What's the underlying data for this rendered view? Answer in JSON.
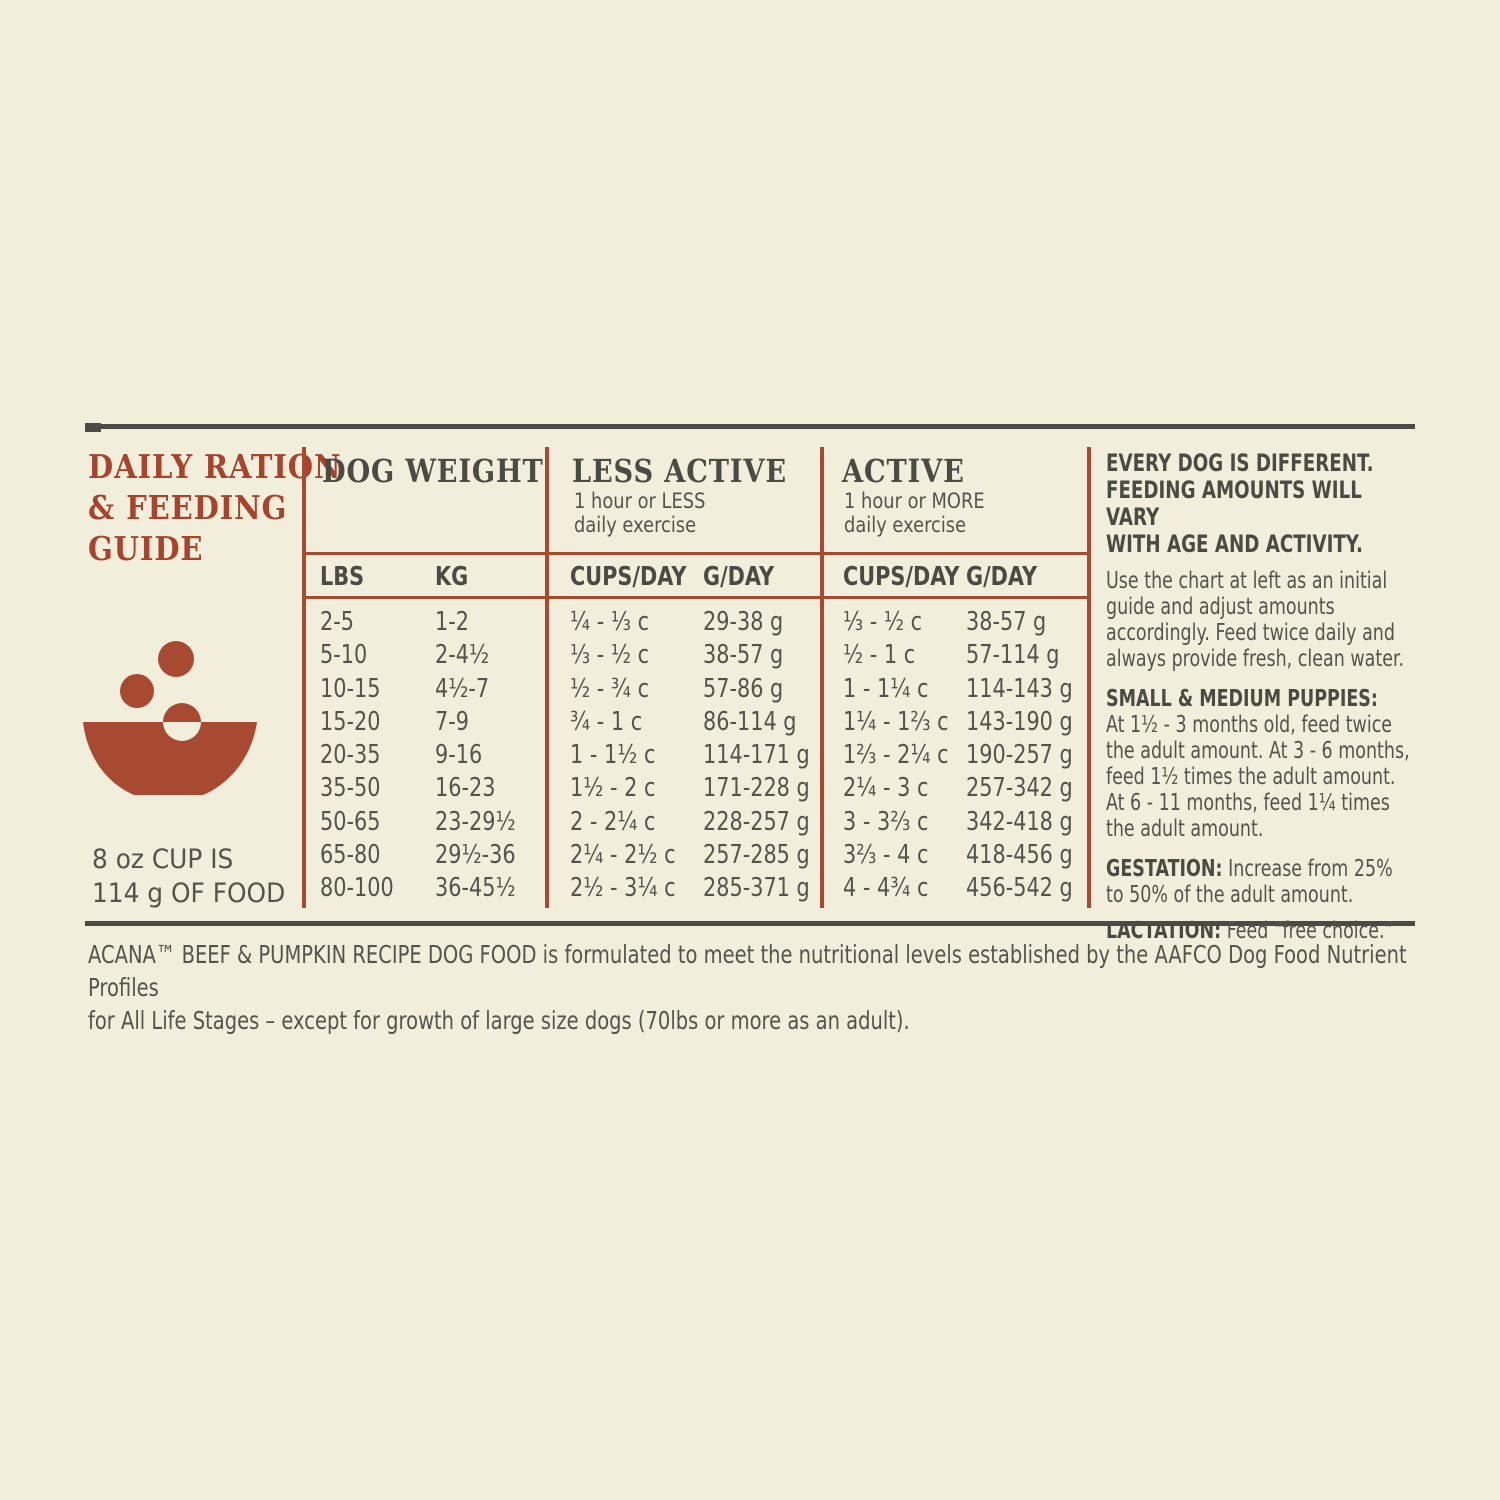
{
  "page": {
    "background": "#f2eedc",
    "accent_red": "#a84a32",
    "title_red": "#a8432c",
    "dark_text": "#4b4a43",
    "body_text": "#55544c"
  },
  "guide": {
    "title": "DAILY RATION\n& FEEDING\nGUIDE",
    "cup_note": "8 oz CUP IS\n114 g OF FOOD",
    "icon": "food-bowl-icon"
  },
  "table": {
    "groups": {
      "dog_weight": {
        "label": "DOG WEIGHT",
        "sub": ""
      },
      "less_active": {
        "label": "LESS ACTIVE",
        "sub": "1 hour or LESS\ndaily exercise"
      },
      "active": {
        "label": "ACTIVE",
        "sub": "1 hour or MORE\ndaily exercise"
      }
    },
    "sub_headers": {
      "lbs": "LBS",
      "kg": "KG",
      "la_cups": "CUPS/DAY",
      "la_g": "G/DAY",
      "a_cups": "CUPS/DAY",
      "a_g": "G/DAY"
    },
    "rows": [
      {
        "lbs": "2-5",
        "kg": "1-2",
        "la_cups": "¼ - ⅓ c",
        "la_g": "29-38 g",
        "a_cups": "⅓ - ½ c",
        "a_g": "38-57 g"
      },
      {
        "lbs": "5-10",
        "kg": "2-4½",
        "la_cups": "⅓ - ½ c",
        "la_g": "38-57 g",
        "a_cups": "½ - 1 c",
        "a_g": "57-114 g"
      },
      {
        "lbs": "10-15",
        "kg": "4½-7",
        "la_cups": "½ - ¾ c",
        "la_g": "57-86 g",
        "a_cups": "1 - 1¼ c",
        "a_g": "114-143 g"
      },
      {
        "lbs": "15-20",
        "kg": "7-9",
        "la_cups": "¾ - 1 c",
        "la_g": "86-114 g",
        "a_cups": "1¼ - 1⅔ c",
        "a_g": "143-190 g"
      },
      {
        "lbs": "20-35",
        "kg": "9-16",
        "la_cups": "1 - 1½ c",
        "la_g": "114-171 g",
        "a_cups": "1⅔ - 2¼ c",
        "a_g": "190-257 g"
      },
      {
        "lbs": "35-50",
        "kg": "16-23",
        "la_cups": "1½ - 2 c",
        "la_g": "171-228 g",
        "a_cups": "2¼ - 3 c",
        "a_g": "257-342 g"
      },
      {
        "lbs": "50-65",
        "kg": "23-29½",
        "la_cups": "2 - 2¼ c",
        "la_g": "228-257 g",
        "a_cups": "3 - 3⅔ c",
        "a_g": "342-418 g"
      },
      {
        "lbs": "65-80",
        "kg": "29½-36",
        "la_cups": "2¼ - 2½ c",
        "la_g": "257-285 g",
        "a_cups": "3⅔ - 4 c",
        "a_g": "418-456 g"
      },
      {
        "lbs": "80-100",
        "kg": "36-45½",
        "la_cups": "2½ - 3¼ c",
        "la_g": "285-371 g",
        "a_cups": "4 - 4¾ c",
        "a_g": "456-542 g"
      }
    ]
  },
  "notes": {
    "heading": "EVERY DOG IS DIFFERENT.\nFEEDING AMOUNTS WILL VARY\nWITH AGE AND ACTIVITY.",
    "intro": "Use the chart at left as an initial guide and adjust amounts accordingly. Feed twice daily and always provide fresh, clean water.",
    "puppies_label": "SMALL & MEDIUM PUPPIES:",
    "puppies_text": "At 1½ - 3 months old, feed twice the adult amount. At 3 - 6 months, feed 1½ times the adult amount. At 6 - 11 months, feed 1¼ times the adult amount.",
    "gestation_label": "GESTATION:",
    "gestation_text": " Increase from 25% to 50% of the adult amount.",
    "lactation_label": "LACTATION:",
    "lactation_text": " Feed “free choice.”"
  },
  "footer": {
    "aafco_statement": "ACANA™ BEEF & PUMPKIN RECIPE DOG FOOD is formulated to meet the nutritional levels established by the AAFCO Dog Food Nutrient Profiles\nfor All Life Stages – except for growth of large size dogs (70lbs or more as an adult)."
  }
}
